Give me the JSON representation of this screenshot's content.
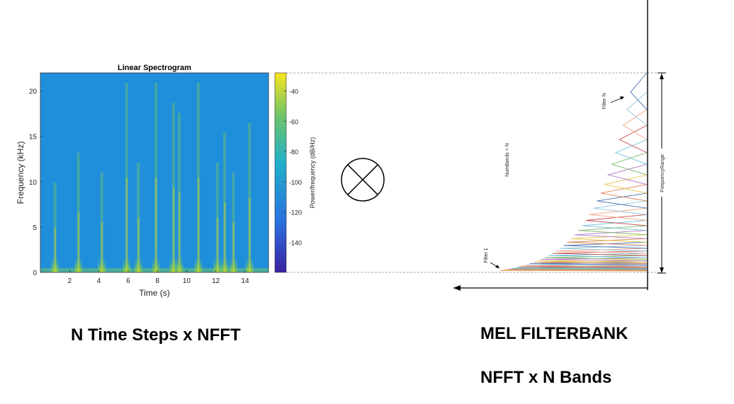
{
  "spectrogram": {
    "title": "Linear Spectrogram",
    "xlabel": "Time (s)",
    "ylabel": "Frequency (kHz)",
    "xticks": [
      "2",
      "4",
      "6",
      "8",
      "10",
      "12",
      "14"
    ],
    "yticks": [
      "0",
      "5",
      "10",
      "15",
      "20"
    ],
    "xlim": [
      0,
      15.6
    ],
    "ylim": [
      0,
      22
    ],
    "colorbar": {
      "label": "Power/frequency (dB/Hz)",
      "ticks": [
        "-40",
        "-60",
        "-80",
        "-100",
        "-120",
        "-140"
      ],
      "range": [
        -160,
        -28
      ]
    },
    "colors": {
      "background": "#1f8fdc",
      "high": "#f7e01e",
      "mid": "#6cc46a",
      "low": "#3a2da6"
    },
    "event_times": [
      1.0,
      2.6,
      4.2,
      5.9,
      6.7,
      7.9,
      9.1,
      9.5,
      10.8,
      12.1,
      12.6,
      13.2,
      14.3
    ]
  },
  "operator": {
    "symbol": "multiply-circle-icon"
  },
  "filterbank": {
    "num_bands_label": "NumBands = N",
    "frequency_range_label": "FrequencyRange",
    "filter_first_label": "Filter 1",
    "filter_last_label": "Filter N",
    "filter_count": 36,
    "filter_colors": [
      "#4c72b0",
      "#dd8452",
      "#e6c84c",
      "#b07cc6",
      "#7fb86b",
      "#6fc3d9",
      "#c44e52",
      "#f4a582",
      "#92c5de"
    ]
  },
  "captions": {
    "left": "N Time Steps x NFFT",
    "mel": "MEL FILTERBANK",
    "bands": "NFFT x N Bands"
  }
}
